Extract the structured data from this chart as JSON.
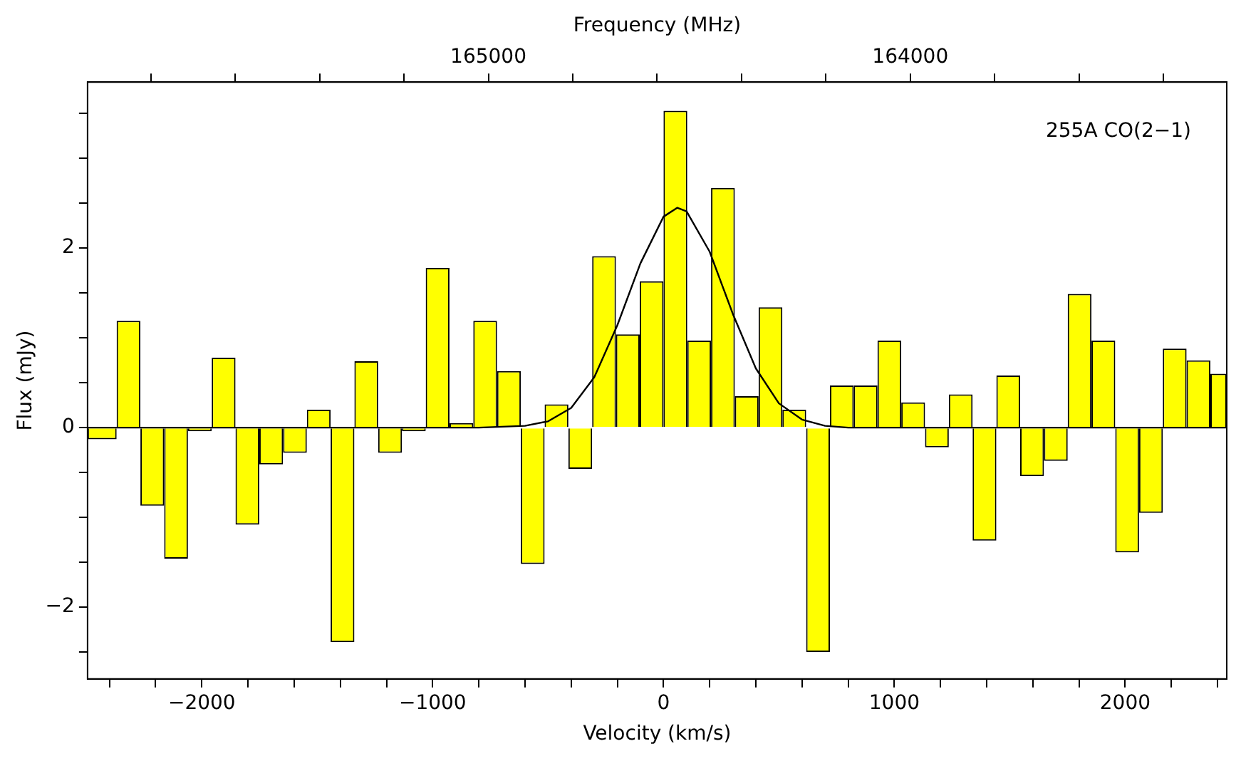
{
  "chart_data": {
    "type": "histogram",
    "xlabel": "Velocity (km/s)",
    "ylabel": "Flux (mJy)",
    "x2label": "Frequency (MHz)",
    "annotations": [
      "255A CO(2−1)"
    ],
    "bins": [
      -2495,
      -2369,
      -2266,
      -2163,
      -2060,
      -1957,
      -1854,
      -1751,
      -1648,
      -1545,
      -1442,
      -1339,
      -1236,
      -1133,
      -1030,
      -927,
      -824,
      -721,
      -618,
      -515,
      -412,
      -309,
      -206,
      -103,
      0,
      103,
      206,
      309,
      412,
      515,
      618,
      721,
      824,
      927,
      1030,
      1133,
      1236,
      1339,
      1442,
      1545,
      1648,
      1751,
      1854,
      1957,
      2060,
      2163,
      2266,
      2369,
      2440
    ],
    "series": [
      {
        "color": "#ffff00",
        "values": [
          -0.13,
          1.19,
          -0.87,
          -1.46,
          -0.04,
          0.78,
          -1.08,
          -0.41,
          -0.28,
          0.2,
          -2.39,
          0.74,
          -0.28,
          -0.04,
          1.78,
          0.05,
          1.19,
          0.63,
          -1.52,
          0.26,
          -0.46,
          1.91,
          1.04,
          1.63,
          3.53,
          0.97,
          2.67,
          0.35,
          1.34,
          0.2,
          -2.5,
          0.47,
          0.47,
          0.97,
          0.28,
          -0.22,
          0.37,
          -1.26,
          0.58,
          -0.54,
          -0.37,
          1.49,
          0.97,
          -1.39,
          -0.95,
          0.88,
          0.75,
          0.6
        ]
      },
      {
        "type": "line",
        "color": "#000000",
        "x": [
          -2495,
          -800,
          -600,
          -500,
          -400,
          -300,
          -200,
          -100,
          0,
          60,
          100,
          200,
          300,
          400,
          500,
          600,
          700,
          800,
          2440
        ],
        "values": [
          0,
          0,
          0.02,
          0.07,
          0.22,
          0.56,
          1.14,
          1.83,
          2.35,
          2.45,
          2.41,
          1.96,
          1.27,
          0.66,
          0.27,
          0.09,
          0.02,
          0,
          0
        ]
      }
    ],
    "xlim": [
      -2495,
      2440
    ],
    "ylim": [
      -2.8,
      3.85
    ],
    "xticks": [
      {
        "value": -2400,
        "label": null
      },
      {
        "value": -2200,
        "label": null
      },
      {
        "value": -2000,
        "label": "−2000"
      },
      {
        "value": -1800,
        "label": null
      },
      {
        "value": -1600,
        "label": null
      },
      {
        "value": -1400,
        "label": null
      },
      {
        "value": -1200,
        "label": null
      },
      {
        "value": -1000,
        "label": "−1000"
      },
      {
        "value": -800,
        "label": null
      },
      {
        "value": -600,
        "label": null
      },
      {
        "value": -400,
        "label": null
      },
      {
        "value": -200,
        "label": null
      },
      0,
      {
        "value": 200,
        "label": null
      },
      {
        "value": 400,
        "label": null
      },
      {
        "value": 600,
        "label": null
      },
      {
        "value": 800,
        "label": null
      },
      1000,
      {
        "value": 1200,
        "label": null
      },
      {
        "value": 1400,
        "label": null
      },
      {
        "value": 1600,
        "label": null
      },
      {
        "value": 1800,
        "label": null
      },
      2000,
      {
        "value": 2200,
        "label": null
      },
      {
        "value": 2400,
        "label": null
      }
    ],
    "yticks": [
      {
        "value": -2.5,
        "label": null
      },
      {
        "value": -2,
        "label": "−2"
      },
      {
        "value": -1.5,
        "label": null
      },
      {
        "value": -1,
        "label": null
      },
      {
        "value": -0.5,
        "label": null
      },
      0,
      {
        "value": 0.5,
        "label": null
      },
      {
        "value": 1,
        "label": null
      },
      {
        "value": 1.5,
        "label": null
      },
      2,
      {
        "value": 2.5,
        "label": null
      },
      {
        "value": 3,
        "label": null
      },
      {
        "value": 3.5,
        "label": null
      }
    ],
    "x2lim": [
      165950,
      163250
    ],
    "x2ticks": [
      {
        "value": 165800,
        "label": null
      },
      {
        "value": 165600,
        "label": null
      },
      {
        "value": 165400,
        "label": null
      },
      {
        "value": 165200,
        "label": null
      },
      165000,
      {
        "value": 164800,
        "label": null
      },
      {
        "value": 164600,
        "label": null
      },
      {
        "value": 164400,
        "label": null
      },
      {
        "value": 164200,
        "label": null
      },
      164000,
      {
        "value": 163800,
        "label": null
      },
      {
        "value": 163600,
        "label": null
      },
      {
        "value": 163400,
        "label": null
      }
    ],
    "grid": false
  }
}
